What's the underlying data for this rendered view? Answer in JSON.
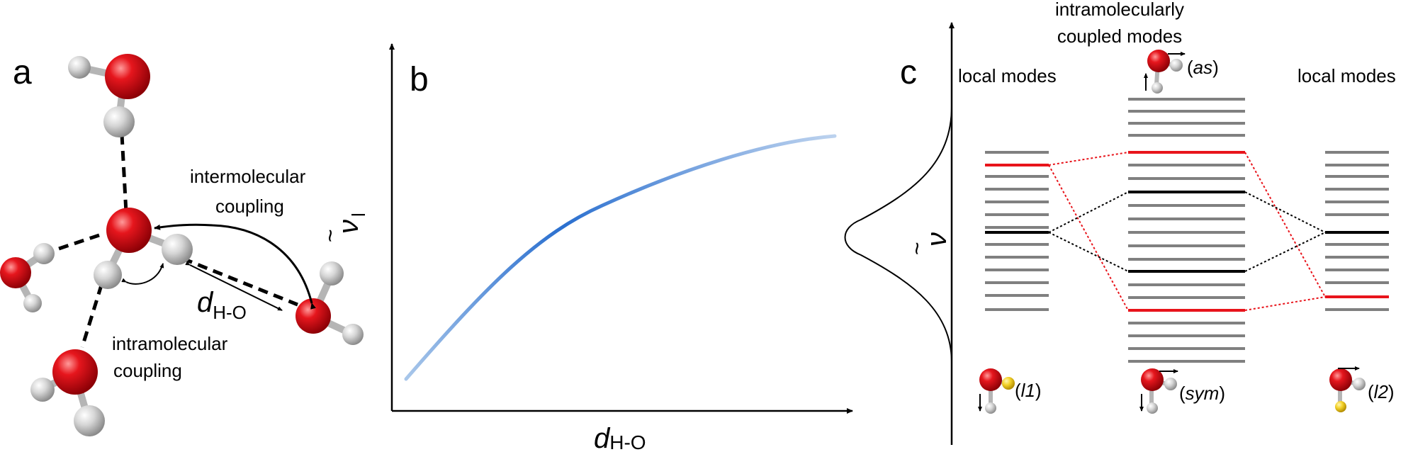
{
  "panels": {
    "a": {
      "label": "a",
      "inter_line1": "intermolecular",
      "inter_line2": "coupling",
      "intra_line1": "intramolecular",
      "intra_line2": "coupling",
      "distance_main": "d",
      "distance_sub": "H-O"
    },
    "b": {
      "label": "b",
      "ylabel_main": "ν",
      "ylabel_tilde": "~",
      "ylabel_sub": "l",
      "xlabel_main": "d",
      "xlabel_sub": "H-O",
      "curve_color_light": "#a9c7ea",
      "curve_color_dark": "#2a6fcf"
    },
    "c": {
      "label": "c",
      "left_title": "local modes",
      "right_title": "local modes",
      "center_title_line1": "intramolecularly",
      "center_title_line2": "coupled modes",
      "axis_main": "ν",
      "axis_tilde": "~",
      "mode_as_open": "(",
      "mode_as": "as",
      "mode_as_close": ")",
      "mode_l1_open": "(",
      "mode_l1": "l1",
      "mode_l1_close": ")",
      "mode_sym_open": "(",
      "mode_sym": "sym",
      "mode_sym_close": ")",
      "mode_l2_open": "(",
      "mode_l2": "l2",
      "mode_l2_close": ")",
      "level_color_gray": "#808080",
      "level_color_red": "#e8141b",
      "level_color_black": "#000000"
    }
  },
  "colors": {
    "oxygen": "#e0141b",
    "hydrogen": "#d8d8d8",
    "tagged_hydrogen": "#f2d230"
  }
}
